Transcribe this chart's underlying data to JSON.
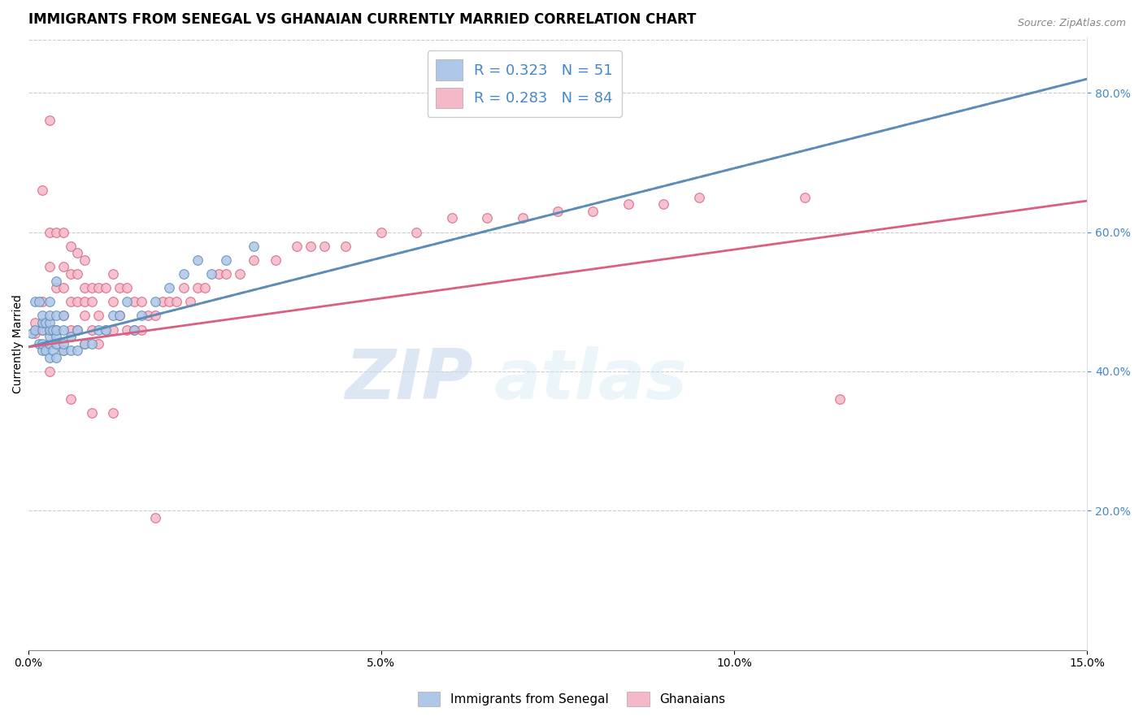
{
  "title": "IMMIGRANTS FROM SENEGAL VS GHANAIAN CURRENTLY MARRIED CORRELATION CHART",
  "source": "Source: ZipAtlas.com",
  "ylabel_label": "Currently Married",
  "x_min": 0.0,
  "x_max": 0.15,
  "y_min": 0.0,
  "y_max": 0.88,
  "x_ticks": [
    0.0,
    0.05,
    0.1,
    0.15
  ],
  "x_tick_labels": [
    "0.0%",
    "5.0%",
    "10.0%",
    "15.0%"
  ],
  "y_ticks_right": [
    0.2,
    0.4,
    0.6,
    0.8
  ],
  "y_tick_labels_right": [
    "20.0%",
    "40.0%",
    "60.0%",
    "80.0%"
  ],
  "senegal_color": "#aec6e8",
  "senegal_color_line": "#5b8db8",
  "ghana_color": "#f5b8c8",
  "ghana_color_line": "#d96080",
  "senegal_R": 0.323,
  "senegal_N": 51,
  "ghana_R": 0.283,
  "ghana_N": 84,
  "watermark_zip": "ZIP",
  "watermark_atlas": "atlas",
  "background_color": "#ffffff",
  "title_fontsize": 12,
  "axis_label_fontsize": 10,
  "tick_fontsize": 10,
  "senegal_x": [
    0.0005,
    0.001,
    0.001,
    0.0015,
    0.0015,
    0.002,
    0.002,
    0.002,
    0.002,
    0.002,
    0.0025,
    0.0025,
    0.003,
    0.003,
    0.003,
    0.003,
    0.003,
    0.003,
    0.003,
    0.0035,
    0.0035,
    0.004,
    0.004,
    0.004,
    0.004,
    0.004,
    0.004,
    0.005,
    0.005,
    0.005,
    0.005,
    0.006,
    0.006,
    0.007,
    0.007,
    0.008,
    0.009,
    0.01,
    0.011,
    0.012,
    0.013,
    0.014,
    0.015,
    0.016,
    0.018,
    0.02,
    0.022,
    0.024,
    0.026,
    0.028,
    0.032
  ],
  "senegal_y": [
    0.455,
    0.46,
    0.5,
    0.44,
    0.5,
    0.43,
    0.44,
    0.46,
    0.47,
    0.48,
    0.43,
    0.47,
    0.42,
    0.44,
    0.45,
    0.46,
    0.47,
    0.48,
    0.5,
    0.43,
    0.46,
    0.42,
    0.44,
    0.45,
    0.46,
    0.48,
    0.53,
    0.43,
    0.44,
    0.46,
    0.48,
    0.43,
    0.45,
    0.43,
    0.46,
    0.44,
    0.44,
    0.46,
    0.46,
    0.48,
    0.48,
    0.5,
    0.46,
    0.48,
    0.5,
    0.52,
    0.54,
    0.56,
    0.54,
    0.56,
    0.58
  ],
  "ghana_x": [
    0.001,
    0.001,
    0.002,
    0.002,
    0.002,
    0.003,
    0.003,
    0.003,
    0.003,
    0.004,
    0.004,
    0.004,
    0.005,
    0.005,
    0.005,
    0.005,
    0.005,
    0.006,
    0.006,
    0.006,
    0.006,
    0.007,
    0.007,
    0.007,
    0.007,
    0.008,
    0.008,
    0.008,
    0.008,
    0.008,
    0.009,
    0.009,
    0.009,
    0.01,
    0.01,
    0.01,
    0.011,
    0.011,
    0.012,
    0.012,
    0.012,
    0.013,
    0.013,
    0.014,
    0.014,
    0.015,
    0.015,
    0.016,
    0.016,
    0.017,
    0.018,
    0.019,
    0.02,
    0.021,
    0.022,
    0.023,
    0.024,
    0.025,
    0.027,
    0.028,
    0.03,
    0.032,
    0.035,
    0.038,
    0.04,
    0.042,
    0.045,
    0.05,
    0.055,
    0.06,
    0.065,
    0.07,
    0.075,
    0.08,
    0.085,
    0.09,
    0.095,
    0.11,
    0.115,
    0.003,
    0.006,
    0.009,
    0.012,
    0.018
  ],
  "ghana_y": [
    0.455,
    0.47,
    0.46,
    0.5,
    0.66,
    0.46,
    0.55,
    0.6,
    0.76,
    0.46,
    0.52,
    0.6,
    0.43,
    0.48,
    0.52,
    0.55,
    0.6,
    0.46,
    0.5,
    0.54,
    0.58,
    0.46,
    0.5,
    0.54,
    0.57,
    0.44,
    0.48,
    0.5,
    0.52,
    0.56,
    0.46,
    0.5,
    0.52,
    0.44,
    0.48,
    0.52,
    0.46,
    0.52,
    0.46,
    0.5,
    0.54,
    0.48,
    0.52,
    0.46,
    0.52,
    0.46,
    0.5,
    0.46,
    0.5,
    0.48,
    0.48,
    0.5,
    0.5,
    0.5,
    0.52,
    0.5,
    0.52,
    0.52,
    0.54,
    0.54,
    0.54,
    0.56,
    0.56,
    0.58,
    0.58,
    0.58,
    0.58,
    0.6,
    0.6,
    0.62,
    0.62,
    0.62,
    0.63,
    0.63,
    0.64,
    0.64,
    0.65,
    0.65,
    0.36,
    0.4,
    0.36,
    0.34,
    0.34,
    0.19
  ],
  "senegal_trend_x": [
    0.0,
    0.15
  ],
  "senegal_trend_y": [
    0.435,
    0.82
  ],
  "ghana_trend_x": [
    0.0,
    0.15
  ],
  "ghana_trend_y": [
    0.435,
    0.645
  ]
}
